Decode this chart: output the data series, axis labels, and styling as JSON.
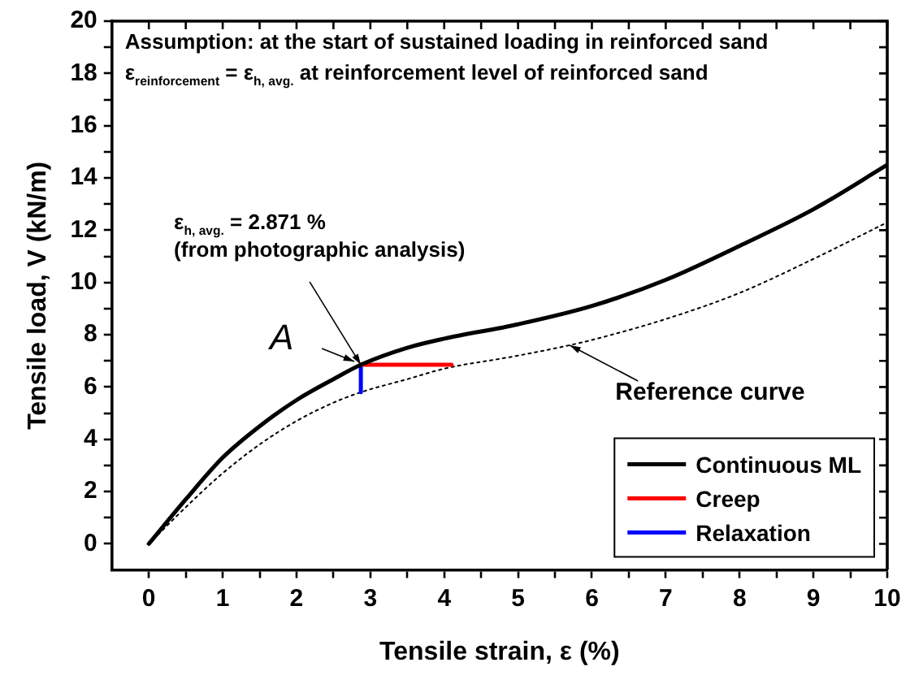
{
  "chart_data": {
    "type": "line",
    "xlabel": "Tensile strain, ε (%)",
    "ylabel": "Tensile load, V (kN/m)",
    "xlim": [
      -0.5,
      10
    ],
    "xticks": [
      0,
      {
        "value": 0.5,
        "label": null
      },
      1,
      {
        "value": 1.5,
        "label": null
      },
      2,
      {
        "value": 2.5,
        "label": null
      },
      3,
      {
        "value": 3.5,
        "label": null
      },
      4,
      {
        "value": 4.5,
        "label": null
      },
      5,
      {
        "value": 5.5,
        "label": null
      },
      6,
      {
        "value": 6.5,
        "label": null
      },
      7,
      {
        "value": 7.5,
        "label": null
      },
      8,
      {
        "value": 8.5,
        "label": null
      },
      9,
      {
        "value": 9.5,
        "label": null
      },
      10
    ],
    "ylim": [
      -1,
      20
    ],
    "yticks": [
      0,
      {
        "value": 1,
        "label": null
      },
      2,
      {
        "value": 3,
        "label": null
      },
      4,
      {
        "value": 5,
        "label": null
      },
      6,
      {
        "value": 7,
        "label": null
      },
      8,
      {
        "value": 9,
        "label": null
      },
      10,
      {
        "value": 11,
        "label": null
      },
      12,
      {
        "value": 13,
        "label": null
      },
      14,
      {
        "value": 15,
        "label": null
      },
      16,
      {
        "value": 17,
        "label": null
      },
      18,
      {
        "value": 19,
        "label": null
      },
      20
    ],
    "grid": false,
    "legend": "bottom right",
    "marker": "none",
    "series": [
      {
        "name": "Continuous ML",
        "color": "#000000",
        "x": [
          0,
          0.5,
          1,
          1.5,
          2,
          2.5,
          2.871,
          3.5,
          4,
          5,
          6,
          7,
          8,
          9,
          10
        ],
        "values": [
          0,
          1.7,
          3.3,
          4.5,
          5.5,
          6.3,
          6.85,
          7.5,
          7.85,
          8.4,
          9.1,
          10.1,
          11.4,
          12.8,
          14.5
        ]
      },
      {
        "name": "Creep",
        "color": "#ff0000",
        "x": [
          2.871,
          4.1
        ],
        "values": [
          6.85,
          6.85
        ]
      },
      {
        "name": "Relaxation",
        "color": "#0000ff",
        "x": [
          2.871,
          2.871
        ],
        "values": [
          6.85,
          5.8
        ]
      },
      {
        "color": "#000000",
        "line_style": "dotted",
        "x": [
          0,
          0.5,
          1,
          1.5,
          2,
          2.5,
          2.871,
          3.5,
          4,
          5,
          5.7,
          6,
          7,
          8,
          9,
          10
        ],
        "values": [
          0,
          1.4,
          2.7,
          3.8,
          4.7,
          5.4,
          5.8,
          6.3,
          6.7,
          7.2,
          7.6,
          7.8,
          8.6,
          9.6,
          10.9,
          12.3
        ]
      }
    ],
    "annotations": [
      "Assumption: at the start of sustained loading in reinforced sand",
      "ε$_{reinforcement}$ = ε$_{h, avg.}$ at reinforcement level of reinforced sand",
      "ε$_{h, avg.}$ = 2.871 %\n(from photographic analysis)",
      {
        "text": "A",
        "x": 2.871,
        "y": 6.85
      },
      {
        "text": "Reference curve",
        "x": 5.7,
        "y": 7.6
      }
    ]
  }
}
